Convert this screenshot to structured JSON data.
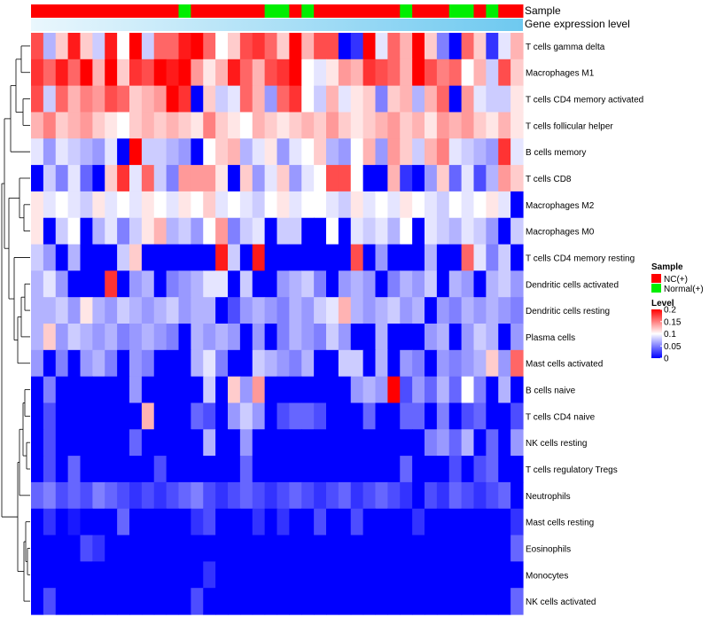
{
  "chart_data": {
    "type": "heatmap",
    "annotation_titles": [
      "Sample",
      "Gene expression level"
    ],
    "n_samples": 40,
    "sample_groups": [
      "NC",
      "NC",
      "NC",
      "NC",
      "NC",
      "NC",
      "NC",
      "NC",
      "NC",
      "NC",
      "NC",
      "NC",
      "Normal",
      "NC",
      "NC",
      "NC",
      "NC",
      "NC",
      "NC",
      "Normal",
      "Normal",
      "NC",
      "Normal",
      "NC",
      "NC",
      "NC",
      "NC",
      "NC",
      "NC",
      "NC",
      "Normal",
      "NC",
      "NC",
      "NC",
      "Normal",
      "Normal",
      "NC",
      "Normal",
      "NC",
      "NC"
    ],
    "rows": [
      {
        "label": "T cells gamma delta",
        "values": [
          0.17,
          0.07,
          0.12,
          0.19,
          0.12,
          0.08,
          0.19,
          0.1,
          0.2,
          0.08,
          0.16,
          0.16,
          0.19,
          0.2,
          0.16,
          0.1,
          0.12,
          0.17,
          0.18,
          0.16,
          0.12,
          0.2,
          0.13,
          0.17,
          0.17,
          0.0,
          0.02,
          0.2,
          0.09,
          0.16,
          0.13,
          0.2,
          0.12,
          0.05,
          0.0,
          0.16,
          0.12,
          0.02,
          0.09,
          0.13
        ]
      },
      {
        "label": "Macrophages M1",
        "values": [
          0.18,
          0.16,
          0.19,
          0.16,
          0.2,
          0.13,
          0.2,
          0.12,
          0.18,
          0.17,
          0.2,
          0.19,
          0.2,
          0.14,
          0.11,
          0.13,
          0.19,
          0.16,
          0.13,
          0.17,
          0.18,
          0.2,
          0.1,
          0.09,
          0.11,
          0.14,
          0.13,
          0.18,
          0.17,
          0.16,
          0.13,
          0.2,
          0.17,
          0.15,
          0.16,
          0.1,
          0.13,
          0.08,
          0.17,
          0.12
        ]
      },
      {
        "label": "T cells CD4 memory activated",
        "values": [
          0.17,
          0.08,
          0.16,
          0.13,
          0.15,
          0.14,
          0.17,
          0.16,
          0.12,
          0.13,
          0.14,
          0.2,
          0.18,
          0.0,
          0.12,
          0.08,
          0.09,
          0.16,
          0.13,
          0.06,
          0.16,
          0.18,
          0.1,
          0.08,
          0.13,
          0.09,
          0.11,
          0.12,
          0.05,
          0.12,
          0.13,
          0.07,
          0.13,
          0.16,
          0.0,
          0.14,
          0.09,
          0.08,
          0.08,
          0.11
        ]
      },
      {
        "label": "T cells follicular helper",
        "values": [
          0.13,
          0.15,
          0.12,
          0.13,
          0.14,
          0.12,
          0.11,
          0.1,
          0.12,
          0.13,
          0.12,
          0.13,
          0.12,
          0.11,
          0.15,
          0.12,
          0.11,
          0.1,
          0.13,
          0.12,
          0.11,
          0.12,
          0.13,
          0.12,
          0.14,
          0.12,
          0.11,
          0.12,
          0.13,
          0.14,
          0.12,
          0.13,
          0.11,
          0.14,
          0.13,
          0.14,
          0.12,
          0.11,
          0.13,
          0.11
        ]
      },
      {
        "label": "B cells memory",
        "values": [
          0.09,
          0.06,
          0.09,
          0.08,
          0.07,
          0.06,
          0.09,
          0.0,
          0.2,
          0.08,
          0.08,
          0.07,
          0.06,
          0.0,
          0.1,
          0.12,
          0.13,
          0.07,
          0.09,
          0.11,
          0.06,
          0.09,
          0.1,
          0.12,
          0.07,
          0.06,
          0.1,
          0.13,
          0.06,
          0.14,
          0.12,
          0.08,
          0.13,
          0.15,
          0.09,
          0.08,
          0.07,
          0.06,
          0.18,
          0.09
        ]
      },
      {
        "label": "T cells CD8",
        "values": [
          0.0,
          0.08,
          0.05,
          0.09,
          0.04,
          0.0,
          0.12,
          0.18,
          0.09,
          0.16,
          0.08,
          0.05,
          0.14,
          0.14,
          0.14,
          0.11,
          0.0,
          0.12,
          0.06,
          0.09,
          0.12,
          0.06,
          0.09,
          0.1,
          0.17,
          0.17,
          0.1,
          0.0,
          0.0,
          0.13,
          0.02,
          0.0,
          0.06,
          0.12,
          0.04,
          0.09,
          0.03,
          0.07,
          0.14,
          0.12
        ]
      },
      {
        "label": "Macrophages M2",
        "values": [
          0.11,
          0.09,
          0.1,
          0.09,
          0.08,
          0.11,
          0.09,
          0.1,
          0.09,
          0.11,
          0.1,
          0.09,
          0.11,
          0.1,
          0.12,
          0.09,
          0.1,
          0.09,
          0.08,
          0.1,
          0.11,
          0.09,
          0.1,
          0.1,
          0.09,
          0.08,
          0.11,
          0.09,
          0.1,
          0.09,
          0.11,
          0.1,
          0.09,
          0.08,
          0.1,
          0.09,
          0.1,
          0.11,
          0.09,
          0.0
        ]
      },
      {
        "label": "Macrophages M0",
        "values": [
          0.11,
          0.0,
          0.08,
          0.1,
          0.0,
          0.07,
          0.09,
          0.05,
          0.08,
          0.11,
          0.13,
          0.07,
          0.08,
          0.06,
          0.1,
          0.14,
          0.05,
          0.08,
          0.09,
          0.0,
          0.08,
          0.08,
          0.0,
          0.0,
          0.1,
          0.0,
          0.09,
          0.08,
          0.09,
          0.07,
          0.1,
          0.0,
          0.09,
          0.08,
          0.07,
          0.09,
          0.08,
          0.06,
          0.0,
          0.08
        ]
      },
      {
        "label": "T cells CD4 memory resting",
        "values": [
          0.08,
          0.06,
          0.0,
          0.07,
          0.0,
          0.0,
          0.0,
          0.08,
          0.12,
          0.0,
          0.0,
          0.0,
          0.0,
          0.0,
          0.0,
          0.19,
          0.08,
          0.0,
          0.19,
          0.0,
          0.0,
          0.0,
          0.0,
          0.0,
          0.0,
          0.0,
          0.17,
          0.0,
          0.06,
          0.0,
          0.0,
          0.0,
          0.07,
          0.0,
          0.0,
          0.16,
          0.09,
          0.05,
          0.08,
          0.0
        ]
      },
      {
        "label": "Dendritic cells activated",
        "values": [
          0.07,
          0.09,
          0.06,
          0.0,
          0.0,
          0.0,
          0.18,
          0.0,
          0.06,
          0.07,
          0.0,
          0.05,
          0.06,
          0.07,
          0.09,
          0.09,
          0.0,
          0.08,
          0.0,
          0.0,
          0.06,
          0.07,
          0.08,
          0.05,
          0.0,
          0.06,
          0.07,
          0.06,
          0.0,
          0.05,
          0.07,
          0.06,
          0.08,
          0.0,
          0.07,
          0.06,
          0.0,
          0.07,
          0.08,
          0.06
        ]
      },
      {
        "label": "Dendritic cells resting",
        "values": [
          0.07,
          0.07,
          0.08,
          0.06,
          0.11,
          0.07,
          0.06,
          0.08,
          0.07,
          0.06,
          0.07,
          0.08,
          0.06,
          0.07,
          0.07,
          0.0,
          0.03,
          0.06,
          0.07,
          0.06,
          0.05,
          0.07,
          0.06,
          0.08,
          0.09,
          0.13,
          0.07,
          0.06,
          0.07,
          0.08,
          0.06,
          0.07,
          0.0,
          0.06,
          0.05,
          0.07,
          0.06,
          0.07,
          0.06,
          0.05
        ]
      },
      {
        "label": "Plasma cells",
        "values": [
          0.07,
          0.12,
          0.06,
          0.08,
          0.07,
          0.06,
          0.07,
          0.05,
          0.06,
          0.07,
          0.06,
          0.05,
          0.0,
          0.07,
          0.06,
          0.07,
          0.06,
          0.0,
          0.06,
          0.0,
          0.05,
          0.07,
          0.06,
          0.05,
          0.08,
          0.06,
          0.0,
          0.0,
          0.07,
          0.0,
          0.0,
          0.0,
          0.06,
          0.07,
          0.0,
          0.06,
          0.08,
          0.07,
          0.0,
          0.06
        ]
      },
      {
        "label": "Mast cells activated",
        "values": [
          0.06,
          0.0,
          0.05,
          0.0,
          0.06,
          0.07,
          0.05,
          0.0,
          0.06,
          0.05,
          0.0,
          0.0,
          0.0,
          0.07,
          0.09,
          0.05,
          0.0,
          0.0,
          0.08,
          0.07,
          0.06,
          0.05,
          0.07,
          0.0,
          0.0,
          0.08,
          0.08,
          0.0,
          0.07,
          0.0,
          0.06,
          0.05,
          0.0,
          0.06,
          0.05,
          0.06,
          0.07,
          0.12,
          0.06,
          0.16
        ]
      },
      {
        "label": "B cells naive",
        "values": [
          0.0,
          0.05,
          0.0,
          0.0,
          0.0,
          0.0,
          0.0,
          0.0,
          0.06,
          0.0,
          0.0,
          0.0,
          0.0,
          0.0,
          0.08,
          0.0,
          0.12,
          0.06,
          0.14,
          0.0,
          0.0,
          0.0,
          0.0,
          0.0,
          0.0,
          0.0,
          0.06,
          0.07,
          0.06,
          0.2,
          0.03,
          0.06,
          0.04,
          0.07,
          0.04,
          0.1,
          0.05,
          0.0,
          0.07,
          0.0
        ]
      },
      {
        "label": "T cells CD4 naive",
        "values": [
          0.0,
          0.03,
          0.0,
          0.0,
          0.0,
          0.0,
          0.0,
          0.0,
          0.0,
          0.13,
          0.0,
          0.0,
          0.0,
          0.04,
          0.03,
          0.0,
          0.06,
          0.08,
          0.06,
          0.0,
          0.03,
          0.04,
          0.04,
          0.03,
          0.0,
          0.0,
          0.0,
          0.04,
          0.0,
          0.0,
          0.04,
          0.04,
          0.0,
          0.05,
          0.0,
          0.03,
          0.04,
          0.0,
          0.0,
          0.03
        ]
      },
      {
        "label": "NK cells resting",
        "values": [
          0.0,
          0.03,
          0.0,
          0.0,
          0.0,
          0.0,
          0.0,
          0.0,
          0.04,
          0.0,
          0.0,
          0.0,
          0.0,
          0.0,
          0.07,
          0.0,
          0.0,
          0.06,
          0.0,
          0.0,
          0.0,
          0.0,
          0.0,
          0.0,
          0.0,
          0.0,
          0.0,
          0.0,
          0.0,
          0.0,
          0.0,
          0.0,
          0.05,
          0.06,
          0.04,
          0.07,
          0.0,
          0.04,
          0.0,
          0.06
        ]
      },
      {
        "label": "T cells regulatory  Tregs",
        "values": [
          0.0,
          0.03,
          0.0,
          0.04,
          0.0,
          0.0,
          0.0,
          0.0,
          0.0,
          0.0,
          0.03,
          0.0,
          0.0,
          0.0,
          0.0,
          0.0,
          0.0,
          0.04,
          0.0,
          0.0,
          0.0,
          0.0,
          0.0,
          0.0,
          0.0,
          0.0,
          0.0,
          0.0,
          0.0,
          0.0,
          0.04,
          0.0,
          0.0,
          0.0,
          0.03,
          0.0,
          0.03,
          0.04,
          0.0,
          0.0
        ]
      },
      {
        "label": "Neutrophils",
        "values": [
          0.04,
          0.05,
          0.03,
          0.04,
          0.03,
          0.05,
          0.04,
          0.03,
          0.02,
          0.03,
          0.02,
          0.03,
          0.04,
          0.05,
          0.03,
          0.02,
          0.03,
          0.04,
          0.03,
          0.02,
          0.03,
          0.04,
          0.03,
          0.02,
          0.03,
          0.04,
          0.02,
          0.03,
          0.04,
          0.03,
          0.02,
          0.0,
          0.03,
          0.02,
          0.04,
          0.03,
          0.02,
          0.03,
          0.04,
          0.0
        ]
      },
      {
        "label": "Mast cells resting",
        "values": [
          0.0,
          0.02,
          0.0,
          0.01,
          0.0,
          0.0,
          0.0,
          0.04,
          0.0,
          0.0,
          0.0,
          0.0,
          0.0,
          0.02,
          0.03,
          0.0,
          0.0,
          0.0,
          0.02,
          0.0,
          0.02,
          0.0,
          0.0,
          0.03,
          0.0,
          0.0,
          0.03,
          0.0,
          0.0,
          0.0,
          0.0,
          0.02,
          0.0,
          0.0,
          0.0,
          0.0,
          0.0,
          0.0,
          0.0,
          0.02
        ]
      },
      {
        "label": "Eosinophils",
        "values": [
          0.0,
          0.0,
          0.0,
          0.0,
          0.03,
          0.02,
          0.0,
          0.0,
          0.0,
          0.0,
          0.0,
          0.0,
          0.0,
          0.0,
          0.0,
          0.0,
          0.0,
          0.0,
          0.0,
          0.0,
          0.0,
          0.0,
          0.0,
          0.0,
          0.0,
          0.0,
          0.0,
          0.0,
          0.0,
          0.0,
          0.0,
          0.0,
          0.0,
          0.0,
          0.0,
          0.0,
          0.0,
          0.0,
          0.0,
          0.04
        ]
      },
      {
        "label": "Monocytes",
        "values": [
          0.0,
          0.0,
          0.0,
          0.0,
          0.0,
          0.0,
          0.0,
          0.0,
          0.0,
          0.0,
          0.0,
          0.0,
          0.0,
          0.0,
          0.02,
          0.0,
          0.0,
          0.0,
          0.0,
          0.0,
          0.0,
          0.0,
          0.0,
          0.0,
          0.0,
          0.0,
          0.0,
          0.0,
          0.0,
          0.0,
          0.0,
          0.0,
          0.0,
          0.0,
          0.0,
          0.0,
          0.0,
          0.0,
          0.0,
          0.0
        ]
      },
      {
        "label": "NK cells activated",
        "values": [
          0.0,
          0.03,
          0.0,
          0.0,
          0.0,
          0.0,
          0.0,
          0.0,
          0.0,
          0.0,
          0.0,
          0.0,
          0.0,
          0.03,
          0.0,
          0.0,
          0.0,
          0.0,
          0.0,
          0.0,
          0.0,
          0.0,
          0.0,
          0.0,
          0.0,
          0.0,
          0.0,
          0.0,
          0.0,
          0.0,
          0.0,
          0.0,
          0.0,
          0.0,
          0.0,
          0.0,
          0.0,
          0.0,
          0.0,
          0.04
        ]
      }
    ],
    "legend": {
      "sample_title": "Sample",
      "sample_items": [
        {
          "key": "NC",
          "label": "NC(+)",
          "color": "#ff0000"
        },
        {
          "key": "Normal",
          "label": "Normal(+)",
          "color": "#00ee00"
        }
      ],
      "level_title": "Level",
      "level_ticks": [
        0.2,
        0.15,
        0.1,
        0.05,
        0
      ],
      "level_range": [
        0,
        0.2
      ]
    },
    "colors": {
      "low": "#0000ff",
      "mid": "#ffffff",
      "high": "#ff0000",
      "gene_expression_bar": "#6ec9f0"
    }
  }
}
